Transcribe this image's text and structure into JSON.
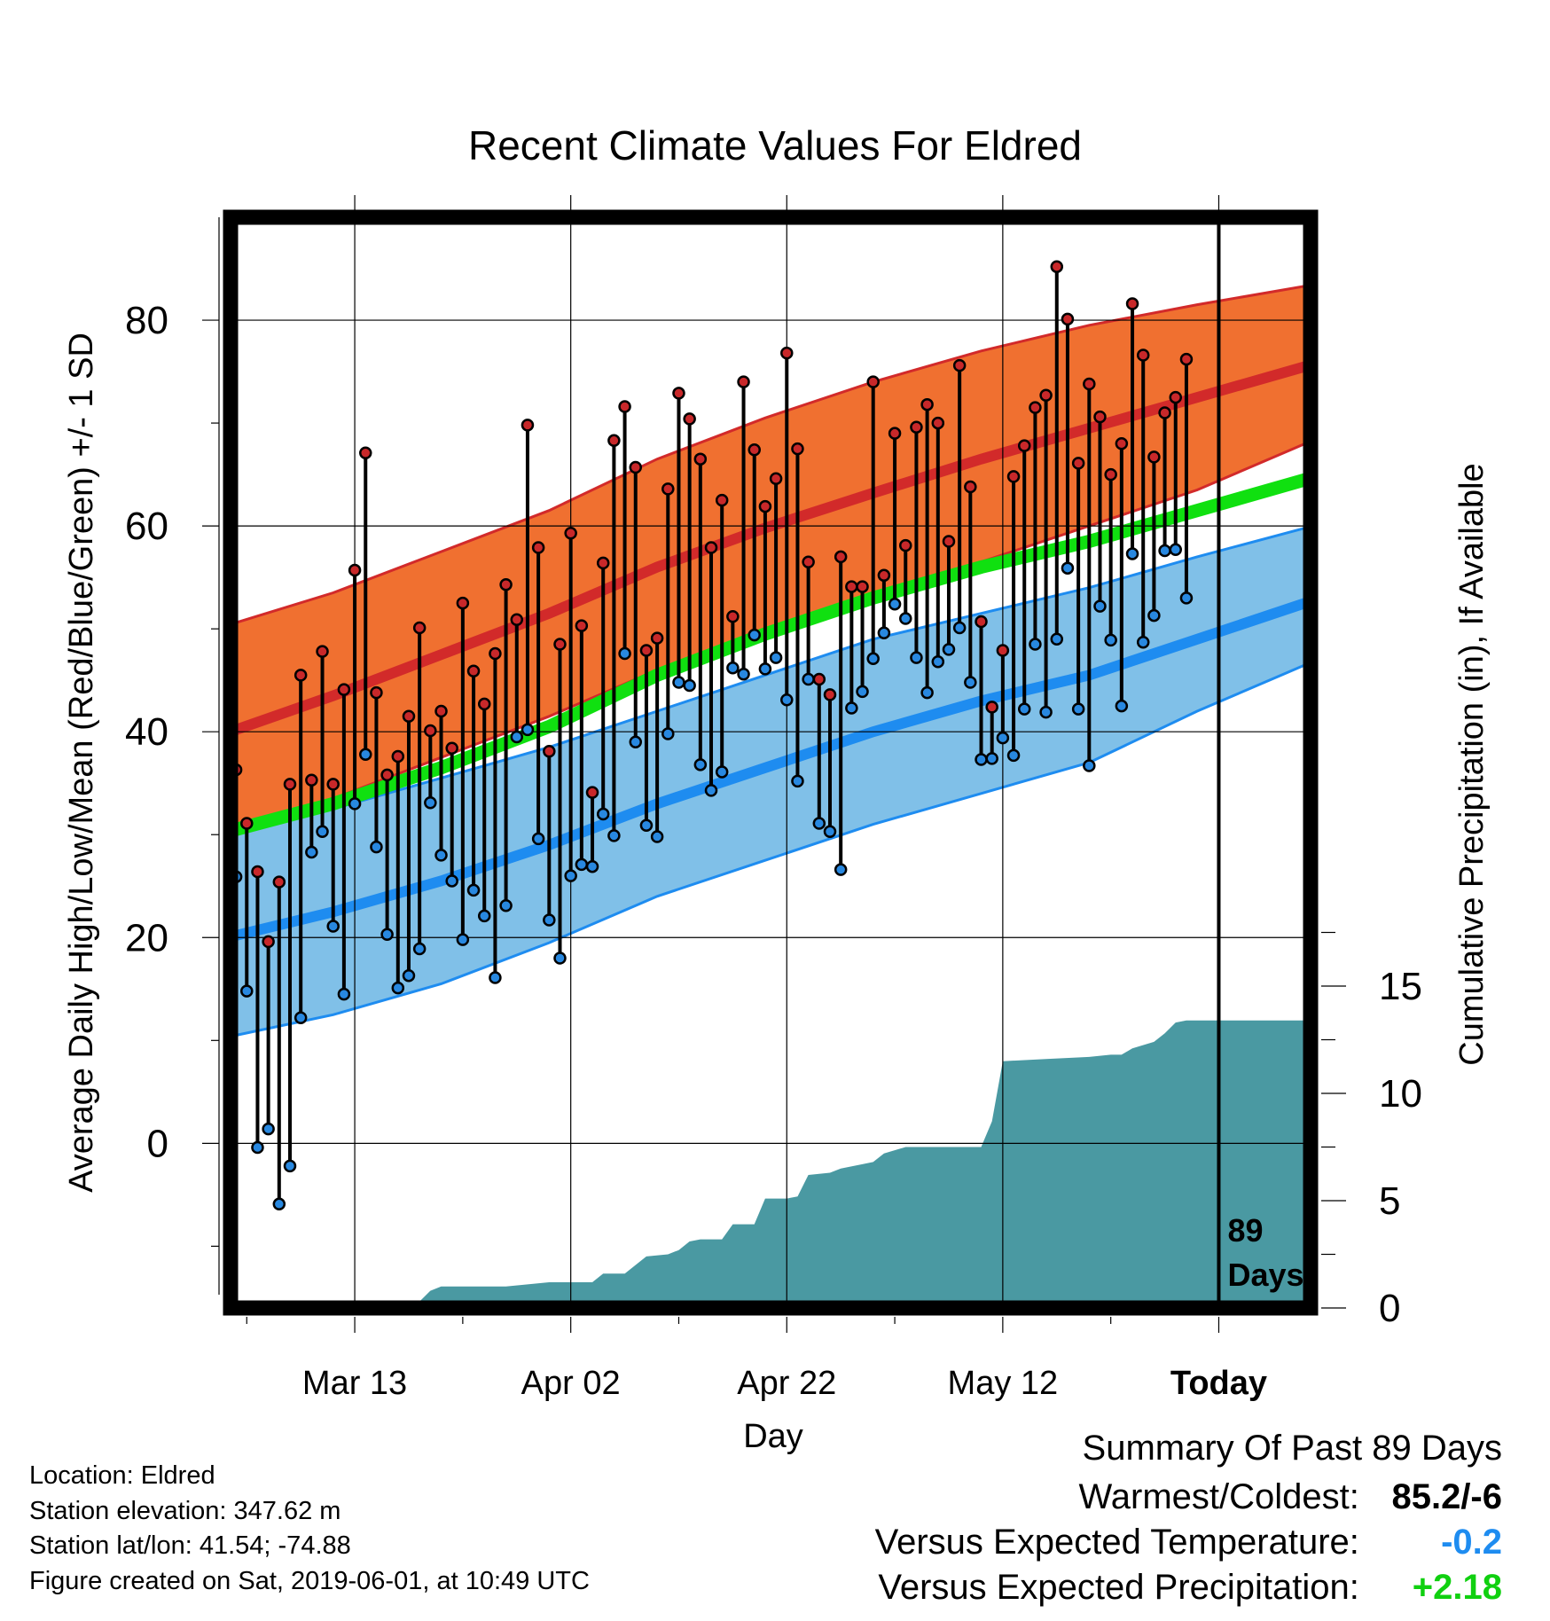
{
  "chart_data": {
    "type": "line",
    "title": "Recent Climate Values For Eldred",
    "xlabel": "Day",
    "ylabel": "Average Daily High/Low/Mean (Red/Blue/Green) +/- 1 SD",
    "y2label": "Cumulative Precipitation (in), If Available",
    "x_tick_labels": [
      "Mar 13",
      "Apr 02",
      "Apr 22",
      "May 12",
      "Today"
    ],
    "x_tick_days": [
      12,
      32,
      52,
      72,
      92
    ],
    "xlim": [
      0.5,
      100.5
    ],
    "ylim": [
      -16,
      90
    ],
    "yticks": [
      0,
      20,
      40,
      60,
      80
    ],
    "y2lim": [
      0,
      20
    ],
    "y2ticks": [
      0,
      5,
      10,
      15
    ],
    "today_marker": {
      "day": 92,
      "label_number": "89",
      "label_word": "Days"
    },
    "normals": {
      "days": [
        1,
        10,
        20,
        30,
        40,
        50,
        60,
        70,
        80,
        90,
        100
      ],
      "high_mean": [
        40.2,
        43.5,
        47.5,
        51.5,
        56.0,
        59.8,
        63.2,
        66.5,
        69.5,
        72.5,
        75.5
      ],
      "high_plus_sd": [
        50.6,
        53.5,
        57.5,
        61.5,
        66.5,
        70.5,
        74.0,
        77.0,
        79.5,
        81.5,
        83.3
      ],
      "high_minus_sd": [
        30.5,
        33.5,
        37.5,
        41.5,
        46.0,
        50.0,
        53.0,
        56.5,
        60.0,
        63.5,
        68.0
      ],
      "mean": [
        30.5,
        33.0,
        36.5,
        40.5,
        45.5,
        49.5,
        53.0,
        56.0,
        58.5,
        61.5,
        64.5
      ],
      "low_mean": [
        20.2,
        22.5,
        25.5,
        29.0,
        33.0,
        36.5,
        40.0,
        43.0,
        45.5,
        49.0,
        52.5
      ],
      "low_plus_sd": [
        30.0,
        32.5,
        35.5,
        38.5,
        42.0,
        45.5,
        49.0,
        51.5,
        54.0,
        57.0,
        59.8
      ],
      "low_minus_sd": [
        10.5,
        12.5,
        15.5,
        19.5,
        24.0,
        27.5,
        31.0,
        34.0,
        37.0,
        42.0,
        46.5
      ]
    },
    "daily": {
      "days": [
        1,
        2,
        3,
        4,
        5,
        6,
        7,
        8,
        9,
        10,
        11,
        12,
        13,
        14,
        15,
        16,
        17,
        18,
        19,
        20,
        21,
        22,
        23,
        24,
        25,
        26,
        27,
        28,
        29,
        30,
        31,
        32,
        33,
        34,
        35,
        36,
        37,
        38,
        39,
        40,
        41,
        42,
        43,
        44,
        45,
        46,
        47,
        48,
        49,
        50,
        51,
        52,
        53,
        54,
        55,
        56,
        57,
        58,
        59,
        60,
        61,
        62,
        63,
        64,
        65,
        66,
        67,
        68,
        69,
        70,
        71,
        72,
        73,
        74,
        75,
        76,
        77,
        78,
        79,
        80,
        81,
        82,
        83,
        84,
        85,
        86,
        87,
        88,
        89
      ],
      "high": [
        36.3,
        31.1,
        26.4,
        19.6,
        25.4,
        34.9,
        45.5,
        35.3,
        47.8,
        34.9,
        44.1,
        55.7,
        67.1,
        43.8,
        35.8,
        37.6,
        41.5,
        50.1,
        40.1,
        42.0,
        38.4,
        52.5,
        45.9,
        42.7,
        47.6,
        54.3,
        50.9,
        69.8,
        57.9,
        38.1,
        48.5,
        59.3,
        50.3,
        34.1,
        56.4,
        68.3,
        71.6,
        65.7,
        47.9,
        49.1,
        63.6,
        72.9,
        70.4,
        66.5,
        57.9,
        62.5,
        51.2,
        74.0,
        67.4,
        61.9,
        64.6,
        76.8,
        67.5,
        56.5,
        45.1,
        43.6,
        57.0,
        54.1,
        54.1,
        74.0,
        55.2,
        69.0,
        58.1,
        69.6,
        71.8,
        70.0,
        58.5,
        75.6,
        63.8,
        50.7,
        42.4,
        47.9,
        64.8,
        67.8,
        71.5,
        72.7,
        85.2,
        80.1,
        66.1,
        73.8,
        70.6,
        65.0,
        68.0,
        81.6,
        76.6,
        66.7,
        71.0,
        72.5,
        76.2
      ],
      "low": [
        25.9,
        14.8,
        -0.4,
        1.4,
        -5.9,
        -2.2,
        12.2,
        28.3,
        30.3,
        21.1,
        14.5,
        33.0,
        37.8,
        28.8,
        20.3,
        15.1,
        16.3,
        18.9,
        33.1,
        28.0,
        25.5,
        19.8,
        24.6,
        22.1,
        16.1,
        23.1,
        39.5,
        40.2,
        29.6,
        21.7,
        18.0,
        26.0,
        27.1,
        26.9,
        32.0,
        29.9,
        47.6,
        39.0,
        30.9,
        29.8,
        39.8,
        44.8,
        44.5,
        36.8,
        34.3,
        36.1,
        46.2,
        45.6,
        49.4,
        46.1,
        47.2,
        43.1,
        35.2,
        45.1,
        31.1,
        30.3,
        26.6,
        42.3,
        43.9,
        47.1,
        49.6,
        52.4,
        51.0,
        47.2,
        43.8,
        46.8,
        48.0,
        50.1,
        44.8,
        37.3,
        37.4,
        39.4,
        37.7,
        42.2,
        48.5,
        41.9,
        49.0,
        55.9,
        42.2,
        36.7,
        52.2,
        48.9,
        42.5,
        57.3,
        48.7,
        51.3,
        57.6,
        57.7,
        53.0
      ]
    },
    "precip": {
      "days": [
        1,
        7,
        8,
        18,
        19,
        20,
        26,
        28,
        30,
        32,
        34,
        35,
        37,
        39,
        41,
        42,
        43,
        44,
        46,
        47,
        49,
        50,
        52,
        53,
        54,
        56,
        57,
        59,
        60,
        61,
        63,
        67,
        70,
        71,
        72,
        76,
        80,
        82,
        83,
        84,
        86,
        87,
        88,
        89,
        90,
        100
      ],
      "cum": [
        0,
        0,
        0.3,
        0.3,
        0.8,
        1.0,
        1.0,
        1.1,
        1.2,
        1.2,
        1.2,
        1.6,
        1.6,
        2.4,
        2.5,
        2.7,
        3.1,
        3.2,
        3.2,
        3.9,
        3.9,
        5.1,
        5.1,
        5.2,
        6.2,
        6.3,
        6.5,
        6.7,
        6.8,
        7.2,
        7.5,
        7.5,
        7.5,
        8.7,
        11.5,
        11.6,
        11.7,
        11.8,
        11.8,
        12.1,
        12.4,
        12.8,
        13.3,
        13.4,
        13.4,
        13.4
      ]
    },
    "colors": {
      "high_band": "#f07030",
      "high_line": "#d22a2a",
      "low_band": "#80c0e8",
      "low_line": "#1e8cf0",
      "mean_line": "#10e010",
      "precip": "#4a99a2",
      "high_point": "#c8282a",
      "low_point": "#2888e0"
    },
    "grid": true
  },
  "info": {
    "location": "Location: Eldred",
    "elevation": "Station elevation: 347.62 m",
    "latlon": "Station lat/lon: 41.54; -74.88",
    "created": "Figure created on Sat, 2019-06-01, at 10:49 UTC"
  },
  "summary": {
    "title": "Summary Of Past 89 Days",
    "warm_label": "Warmest/Coldest:",
    "warm_value": "85.2/-6",
    "temp_label": "Versus Expected Temperature:",
    "temp_value": "-0.2",
    "temp_color": "#1e8cf0",
    "precip_label": "Versus Expected Precipitation:",
    "precip_value": "+2.18",
    "precip_color": "#10d010"
  }
}
